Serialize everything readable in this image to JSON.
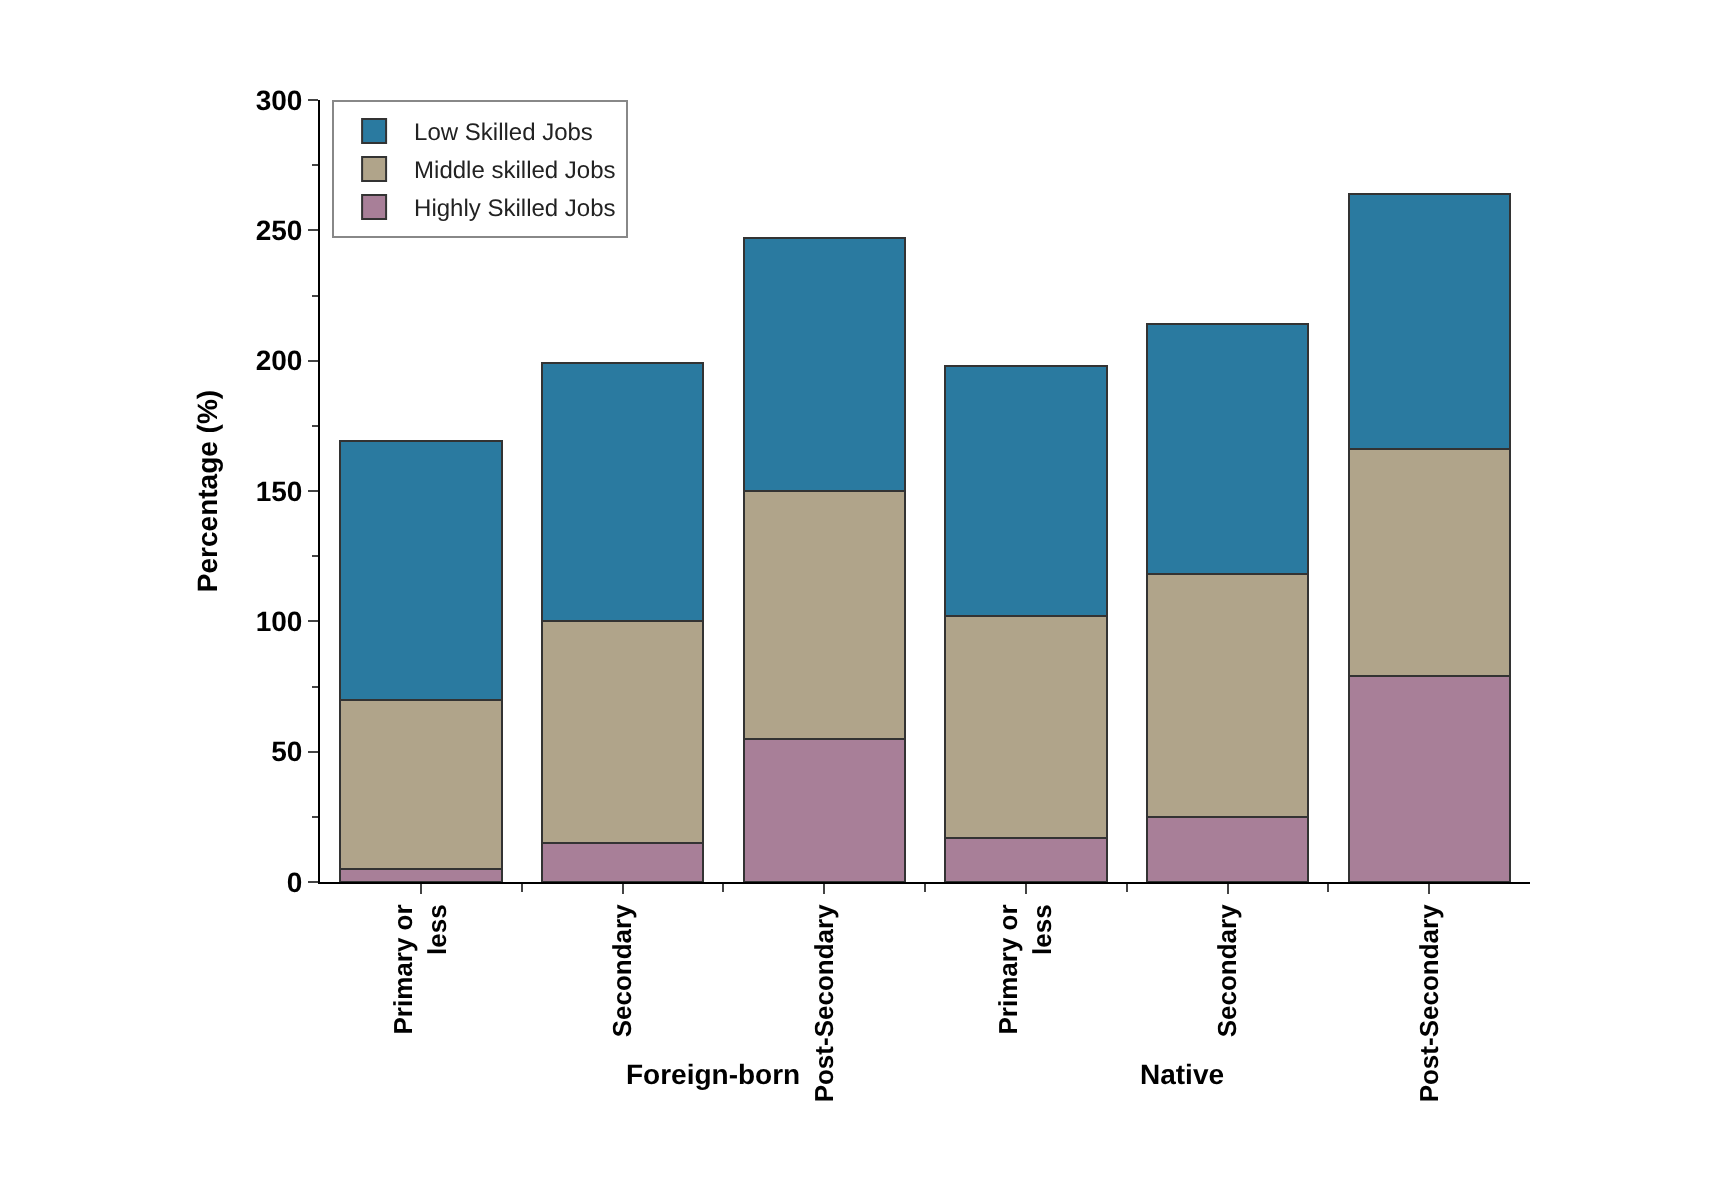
{
  "chart_data": {
    "type": "bar",
    "stacked": true,
    "categories": [
      "Primary or less",
      "Secondary",
      "Post-Secondary",
      "Primary or less",
      "Secondary",
      "Post-Secondary"
    ],
    "series": [
      {
        "name": "Highly Skilled Jobs",
        "color": "#a87f98",
        "values": [
          5,
          15,
          55,
          17,
          25,
          79
        ]
      },
      {
        "name": "Middle skilled Jobs",
        "color": "#b0a48a",
        "values": [
          65,
          85,
          95,
          85,
          93,
          87
        ]
      },
      {
        "name": "Low Skilled Jobs",
        "color": "#2a7aa0",
        "values": [
          99,
          99,
          97,
          96,
          96,
          98
        ]
      }
    ],
    "ylabel": "Percentage (%)",
    "ylim": [
      0,
      300
    ],
    "yticks": [
      0,
      50,
      100,
      150,
      200,
      250,
      300
    ],
    "annotations": [
      "Foreign-born",
      "Native"
    ],
    "legend": "top left"
  }
}
